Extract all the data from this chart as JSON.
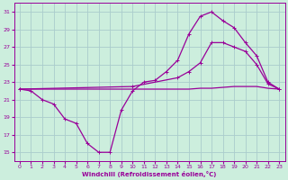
{
  "xlabel": "Windchill (Refroidissement éolien,°C)",
  "xlim": [
    -0.5,
    23.5
  ],
  "ylim": [
    14,
    32
  ],
  "yticks": [
    15,
    17,
    19,
    21,
    23,
    25,
    27,
    29,
    31
  ],
  "xticks": [
    0,
    1,
    2,
    3,
    4,
    5,
    6,
    7,
    8,
    9,
    10,
    11,
    12,
    13,
    14,
    15,
    16,
    17,
    18,
    19,
    20,
    21,
    22,
    23
  ],
  "background_color": "#cceedd",
  "grid_color": "#aacccc",
  "line_color": "#990099",
  "line1_x": [
    0,
    1,
    2,
    3,
    4,
    5,
    6,
    7,
    8,
    9,
    10,
    11,
    12,
    13,
    14,
    15,
    16,
    17,
    18,
    19,
    20,
    21,
    22,
    23
  ],
  "line1_y": [
    22.2,
    22.0,
    21.0,
    20.5,
    18.8,
    18.3,
    16.0,
    15.0,
    15.0,
    19.8,
    22.0,
    23.0,
    23.2,
    24.2,
    25.5,
    28.5,
    30.5,
    31.0,
    30.0,
    29.2,
    27.5,
    26.0,
    23.0,
    22.2
  ],
  "line2_x": [
    0,
    10,
    14,
    15,
    16,
    17,
    18,
    19,
    20,
    21,
    22,
    23
  ],
  "line2_y": [
    22.2,
    22.5,
    23.5,
    24.2,
    25.2,
    27.5,
    27.5,
    27.0,
    26.5,
    25.0,
    22.8,
    22.2
  ],
  "line3_x": [
    0,
    1,
    2,
    9,
    10,
    11,
    12,
    13,
    14,
    15,
    16,
    17,
    18,
    19,
    20,
    21,
    22,
    23
  ],
  "line3_y": [
    22.2,
    22.2,
    22.2,
    22.2,
    22.2,
    22.2,
    22.2,
    22.2,
    22.2,
    22.2,
    22.3,
    22.3,
    22.4,
    22.5,
    22.5,
    22.5,
    22.3,
    22.2
  ]
}
